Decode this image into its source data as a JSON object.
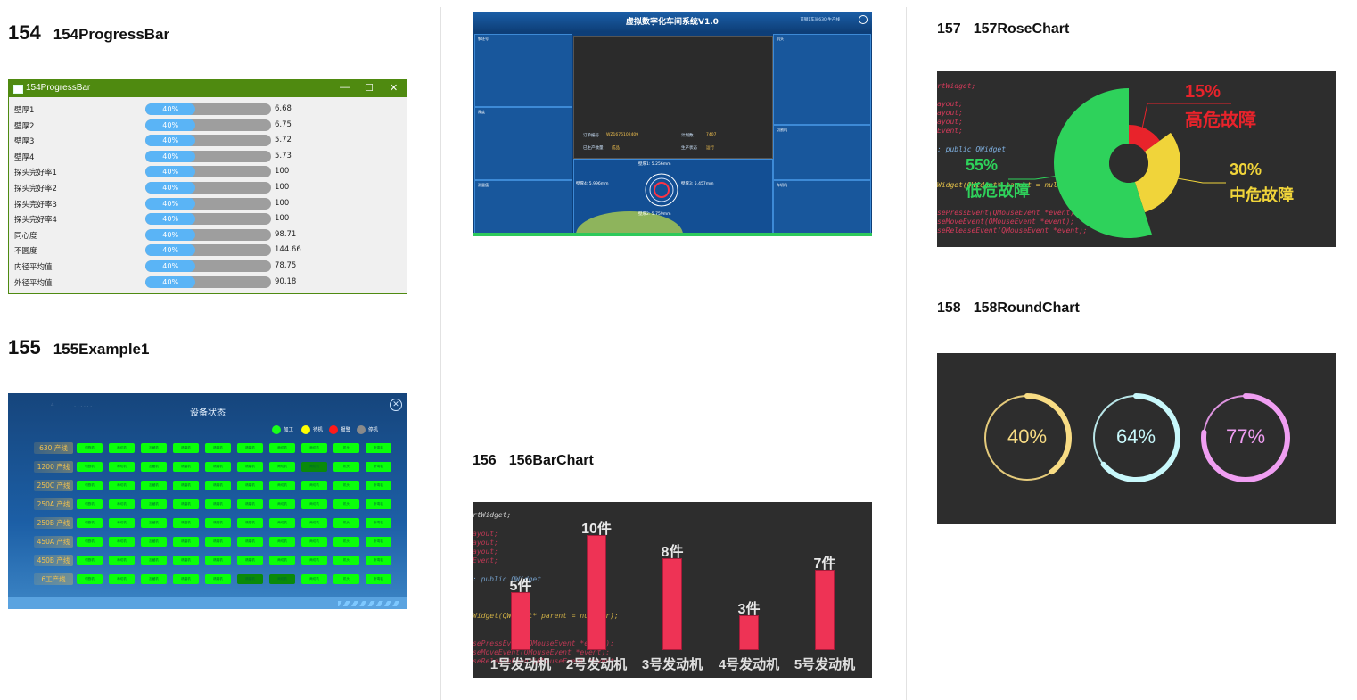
{
  "sections": {
    "s154": {
      "num": "154",
      "name": "154ProgressBar"
    },
    "s155": {
      "num": "155",
      "name": "155Example1"
    },
    "s156": {
      "num": "156",
      "name": "156BarChart"
    },
    "s157": {
      "num": "157",
      "name": "157RoseChart"
    },
    "s158": {
      "num": "158",
      "name": "158RoundChart"
    }
  },
  "progress_window": {
    "title": "154ProgressBar",
    "controls": {
      "minimize": "—",
      "maximize": "☐",
      "close": "✕"
    },
    "rows": [
      {
        "label": "壁厚1",
        "progress": "40%",
        "value": "6.68"
      },
      {
        "label": "壁厚2",
        "progress": "40%",
        "value": "6.75"
      },
      {
        "label": "壁厚3",
        "progress": "40%",
        "value": "5.72"
      },
      {
        "label": "壁厚4",
        "progress": "40%",
        "value": "5.73"
      },
      {
        "label": "探头完好率1",
        "progress": "40%",
        "value": "100"
      },
      {
        "label": "探头完好率2",
        "progress": "40%",
        "value": "100"
      },
      {
        "label": "探头完好率3",
        "progress": "40%",
        "value": "100"
      },
      {
        "label": "探头完好率4",
        "progress": "40%",
        "value": "100"
      },
      {
        "label": "同心度",
        "progress": "40%",
        "value": "98.71"
      },
      {
        "label": "不圆度",
        "progress": "40%",
        "value": "144.66"
      },
      {
        "label": "内径平均值",
        "progress": "40%",
        "value": "78.75"
      },
      {
        "label": "外径平均值",
        "progress": "40%",
        "value": "90.18"
      }
    ]
  },
  "example1": {
    "title": "设备状态",
    "legend": [
      {
        "label": "加工",
        "color": "#19ff19"
      },
      {
        "label": "待机",
        "color": "#ffff00"
      },
      {
        "label": "报警",
        "color": "#ff1a1a"
      },
      {
        "label": "停机",
        "color": "#8a8a8a"
      }
    ],
    "lines": [
      "630 产线",
      "1200 产线",
      "250C 产线",
      "250A 产线",
      "250B 产线",
      "450A 产线",
      "450B 产线",
      "6工产线"
    ],
    "machines": [
      "切割机",
      "串切机",
      "加藏机",
      "精磨机",
      "精磨机",
      "精磨机",
      "两切机",
      "两切机",
      "机头",
      "折弯机"
    ],
    "dim_cells": [
      [
        1,
        7
      ],
      [
        7,
        5
      ],
      [
        7,
        6
      ]
    ]
  },
  "workshop": {
    "title": "虚拟数字化车间系统V1.0",
    "status": "首钢1车间630-生产线",
    "panels": {
      "left_top": "钢坯号",
      "left_mid": "厚度",
      "left_bottom": "测量值",
      "right_top": "机头",
      "right_mid": "切割机",
      "right_bottom": "车切机"
    },
    "info": {
      "order_label": "订单编号",
      "order_value": "WZ1676102409",
      "plan_label": "计划数",
      "plan_value": "7407",
      "qty_label": "已生产数量",
      "qty_value": "成品",
      "status_label": "生产状态",
      "status_value": "运行"
    },
    "gauge": {
      "top": "壁厚1: 5.256mm",
      "left": "壁厚4: 5.996mm",
      "right": "壁厚3: 5.457mm",
      "bottom": "壁厚2: 5.759mm"
    },
    "legend": [
      "壁厚1",
      "壁厚2",
      "壁厚3",
      "壁厚4"
    ]
  },
  "bar_chart_bg_code": [
    "rtWidget;",
    "ayout;",
    "ayout;",
    "ayout;",
    "Event;",
    ": public QWidget",
    "Widget(QWidget* parent = nullptr);",
    "sePressEvent(QMouseEvent *event);",
    "seMoveEvent(QMouseEvent *event);",
    "seReleaseEvent(QMouseEvent *event);"
  ],
  "rose_bg_code": [
    "rtWidget;",
    "ayout;",
    "ayout;",
    "ayout;",
    "Event;",
    ": public QWidget",
    "Widget(QWidget* parent = nullptr);",
    "sePressEvent(QMouseEvent *event);",
    "seMoveEvent(QMouseEvent *event);",
    "seReleaseEvent(QMouseEvent *event);"
  ],
  "chart_data": [
    {
      "type": "bar",
      "categories": [
        "1号发动机",
        "2号发动机",
        "3号发动机",
        "4号发动机",
        "5号发动机"
      ],
      "values": [
        5,
        10,
        8,
        3,
        7
      ],
      "data_labels": [
        "5件",
        "10件",
        "8件",
        "3件",
        "7件"
      ],
      "bar_color": "#ee3355",
      "ylim": [
        0,
        11
      ]
    },
    {
      "type": "pie",
      "variant": "rose-donut",
      "slices": [
        {
          "label": "高危故障",
          "pct_label": "15%",
          "value": 15,
          "color": "#e8232b"
        },
        {
          "label": "中危故障",
          "pct_label": "30%",
          "value": 30,
          "color": "#f0d43a"
        },
        {
          "label": "低危故障",
          "pct_label": "55%",
          "value": 55,
          "color": "#2ed25b"
        }
      ]
    },
    {
      "type": "pie",
      "variant": "progress-rings",
      "rings": [
        {
          "label": "40%",
          "value": 40,
          "color": "#f8dc84"
        },
        {
          "label": "64%",
          "value": 64,
          "color": "#c8f8fb"
        },
        {
          "label": "77%",
          "value": 77,
          "color": "#f09ef2"
        }
      ]
    }
  ]
}
